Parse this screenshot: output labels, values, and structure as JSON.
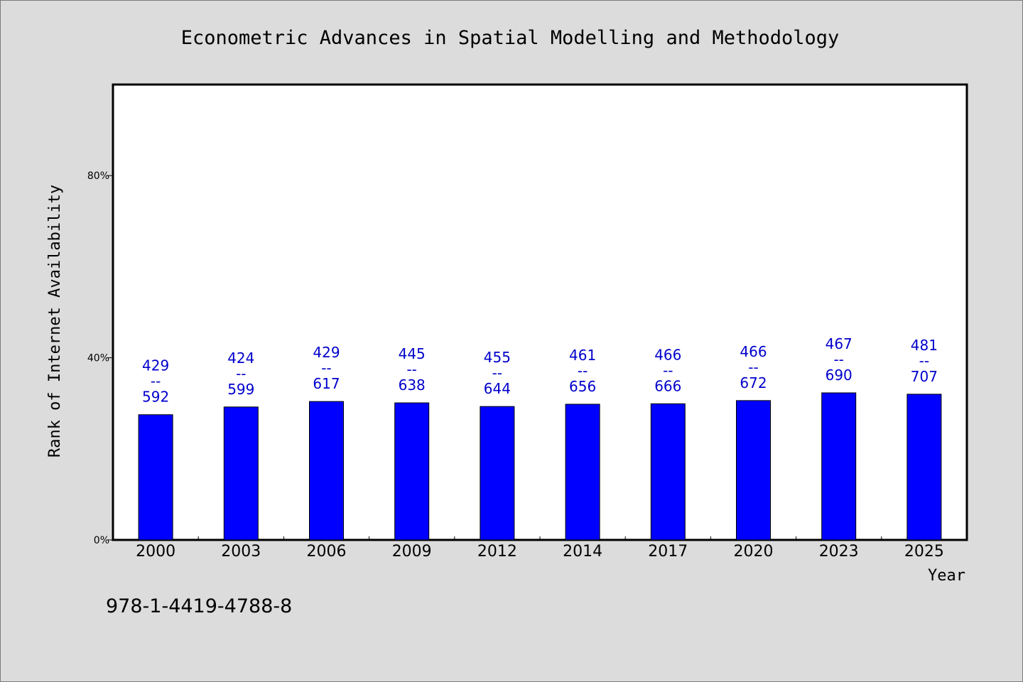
{
  "chart_data": {
    "type": "bar",
    "title": "Econometric Advances in Spatial Modelling and Methodology",
    "xlabel": "Year",
    "ylabel": "Rank of Internet Availability",
    "categories": [
      "2000",
      "2003",
      "2006",
      "2009",
      "2012",
      "2014",
      "2017",
      "2020",
      "2023",
      "2025"
    ],
    "values": [
      27.5,
      29.2,
      30.4,
      30.1,
      29.3,
      29.8,
      29.9,
      30.6,
      32.3,
      32.0
    ],
    "data_labels": [
      [
        "429",
        "--",
        "592"
      ],
      [
        "424",
        "--",
        "599"
      ],
      [
        "429",
        "--",
        "617"
      ],
      [
        "445",
        "--",
        "638"
      ],
      [
        "455",
        "--",
        "644"
      ],
      [
        "461",
        "--",
        "656"
      ],
      [
        "466",
        "--",
        "666"
      ],
      [
        "466",
        "--",
        "672"
      ],
      [
        "467",
        "--",
        "690"
      ],
      [
        "481",
        "--",
        "707"
      ]
    ],
    "yticks": [
      0,
      40,
      80
    ],
    "ytick_labels": [
      "0%",
      "40%",
      "80%"
    ],
    "ylim": [
      0,
      100
    ],
    "grid": false,
    "bar_color": "#0000ff",
    "label_color": "#0000cc"
  },
  "footer": {
    "isbn": "978-1-4419-4788-8"
  }
}
